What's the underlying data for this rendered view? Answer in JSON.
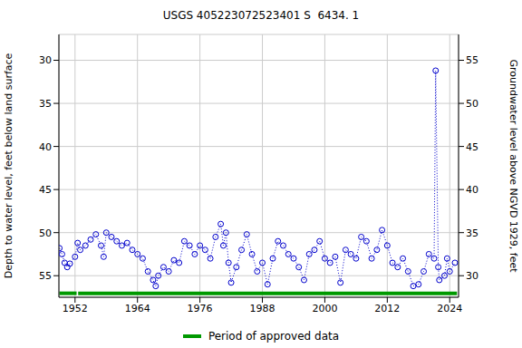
{
  "chart_data": {
    "type": "line",
    "title": "USGS 405223072523401 S  6434. 1",
    "y_label": "Depth to water level, feet below land surface",
    "y2_label": "Groundwater level above NGVD 1929, feet",
    "x": [
      1949,
      1949.5,
      1950,
      1950.5,
      1951,
      1952,
      1952.5,
      1953,
      1954,
      1955,
      1956,
      1957,
      1957.5,
      1958,
      1959,
      1960,
      1961,
      1962,
      1963,
      1964,
      1965,
      1966,
      1967,
      1967.5,
      1968,
      1969,
      1970,
      1971,
      1972,
      1973,
      1974,
      1975,
      1976,
      1977,
      1978,
      1979,
      1980,
      1980.5,
      1981,
      1981.5,
      1982,
      1983,
      1984,
      1985,
      1986,
      1987,
      1988,
      1989,
      1990,
      1991,
      1992,
      1993,
      1994,
      1995,
      1996,
      1997,
      1998,
      1999,
      2000,
      2001,
      2002,
      2003,
      2004,
      2005,
      2006,
      2007,
      2008,
      2009,
      2010,
      2011,
      2012,
      2013,
      2014,
      2015,
      2016,
      2017,
      2018,
      2019,
      2020,
      2021,
      2021.3,
      2021.8,
      2022,
      2023,
      2023.5,
      2024,
      2025
    ],
    "values": [
      51.8,
      52.5,
      53.5,
      54.0,
      53.6,
      52.8,
      51.2,
      52.0,
      51.5,
      50.8,
      50.2,
      51.5,
      52.8,
      50.0,
      50.5,
      51.0,
      51.5,
      51.2,
      52.0,
      52.5,
      53.0,
      54.5,
      55.5,
      56.2,
      55.0,
      54.0,
      54.5,
      53.2,
      53.5,
      51.0,
      51.5,
      52.5,
      51.5,
      52.0,
      53.0,
      50.5,
      49.0,
      51.5,
      50.0,
      53.5,
      55.8,
      54.0,
      52.0,
      50.2,
      52.5,
      54.5,
      53.5,
      56.0,
      53.0,
      51.0,
      51.5,
      52.5,
      53.0,
      54.0,
      55.5,
      52.5,
      52.0,
      51.0,
      53.0,
      53.5,
      52.8,
      55.8,
      52.0,
      52.5,
      53.0,
      50.5,
      51.0,
      53.0,
      52.0,
      49.7,
      51.5,
      53.5,
      54.0,
      53.0,
      54.5,
      56.2,
      56.0,
      54.5,
      52.5,
      53.0,
      31.2,
      54.0,
      55.5,
      55.0,
      53.0,
      54.5,
      53.5
    ],
    "color": "#0000cc",
    "marker": "circle_open",
    "line_style": "dotted",
    "xlim": [
      1948.9,
      2025.7
    ],
    "xticks": [
      1952,
      1964,
      1976,
      1988,
      2000,
      2012,
      2024
    ],
    "ylim": [
      57.5,
      27
    ],
    "yticks": [
      30,
      35,
      40,
      45,
      50,
      55
    ],
    "y2lim": [
      27.5,
      58
    ],
    "y2ticks": [
      30,
      35,
      40,
      45,
      50,
      55
    ],
    "grid": true,
    "legend": "bottom",
    "approved_periods": {
      "name": "Period of approved data",
      "color": "#009900",
      "ranges": [
        [
          1949,
          1952.3
        ],
        [
          1952.6,
          2025.4
        ]
      ]
    }
  }
}
